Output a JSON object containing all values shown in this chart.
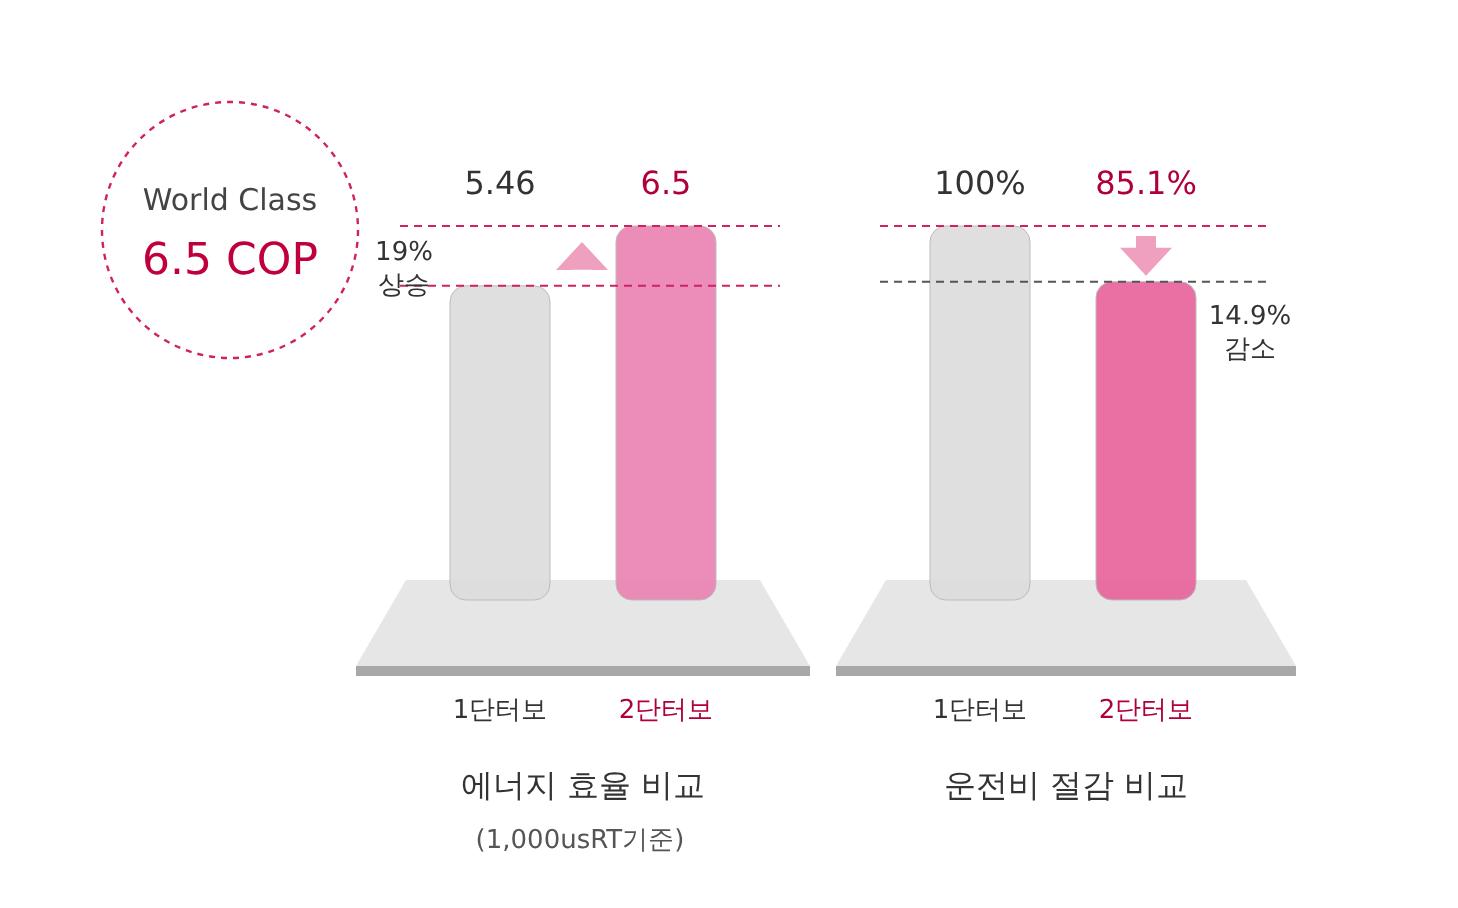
{
  "chart_data": [
    {
      "type": "bar",
      "categories": [
        "1단터보",
        "2단터보"
      ],
      "values": [
        5.46,
        6.5
      ],
      "colors": [
        "#dcdcdc",
        "#ea7fb0"
      ],
      "data_labels": true,
      "xlabel": "에너지 효율 비교",
      "ref_lines": [
        {
          "axis": "y",
          "value": 6.5,
          "color": "#d0225f",
          "line_style": "dashed"
        },
        {
          "axis": "y",
          "value": 5.46,
          "color": "#d0225f",
          "line_style": "dashed"
        }
      ],
      "annotations": [
        "World Class\n6.5 COP",
        "19%\n상승",
        "(1,000usRT기준)"
      ]
    },
    {
      "type": "bar",
      "categories": [
        "1단터보",
        "2단터보"
      ],
      "values": [
        100,
        85.1
      ],
      "value_labels": [
        "100%",
        "85.1%"
      ],
      "colors": [
        "#dcdcdc",
        "#e8609a"
      ],
      "xlabel": "운전비 절감 비교",
      "ref_lines": [
        {
          "axis": "y",
          "value": 100,
          "color": "#d0225f",
          "line_style": "dashed"
        },
        {
          "axis": "y",
          "value": 85.1,
          "color": "#555555",
          "line_style": "dashed"
        }
      ],
      "annotations": [
        "14.9%\n감소"
      ]
    }
  ]
}
